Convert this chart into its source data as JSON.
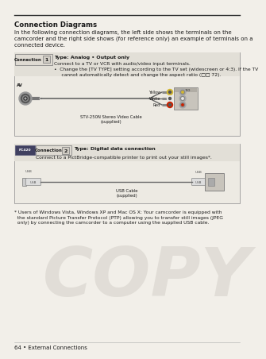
{
  "bg_color": "#f2efe9",
  "title": "Connection Diagrams",
  "intro_text": "In the following connection diagrams, the left side shows the terminals on the\ncamcorder and the right side shows (for reference only) an example of terminals on a\nconnected device.",
  "conn1_type": "Type: Analog • Output only",
  "conn1_desc1": "Connect to a TV or VCR with audio/video input terminals.",
  "conn1_desc2": "•  Change the [TV TYPE] setting according to the TV set (widescreen or 4:3). If the TV",
  "conn1_desc3": "     cannot automatically detect and change the aspect ratio (□□ 72).",
  "conn1_cable": "STV-250N Stereo Video Cable\n(supplied)",
  "conn2_type": "Type: Digital data connection",
  "conn2_desc": "Connect to a PictBridge-compatible printer to print out your still images*.",
  "conn2_cable": "USB Cable\n(supplied)",
  "footnote": "* Users of Windows Vista, Windows XP and Mac OS X: Your camcorder is equipped with\n  the standard Picture Transfer Protocol (PTP) allowing you to transfer still images (JPEG\n  only) by connecting the camcorder to a computer using the supplied USB cable.",
  "footer": "64 • External Connections",
  "copy_text": "COPY",
  "copy_color": "#c8c4bc",
  "box_bg": "#edeae3",
  "box_header_bg": "#e2dfd7",
  "border_color": "#999999",
  "text_color": "#1a1a1a",
  "header_line_color": "#333333",
  "yellow": "#d4b830",
  "white_c": "#e8e8e8",
  "red_c": "#cc2200",
  "conn_label_bg": "#dedad2",
  "num_bg": "#d0ccc4",
  "pictbridge_bg": "#404060",
  "cable_color": "#666666"
}
